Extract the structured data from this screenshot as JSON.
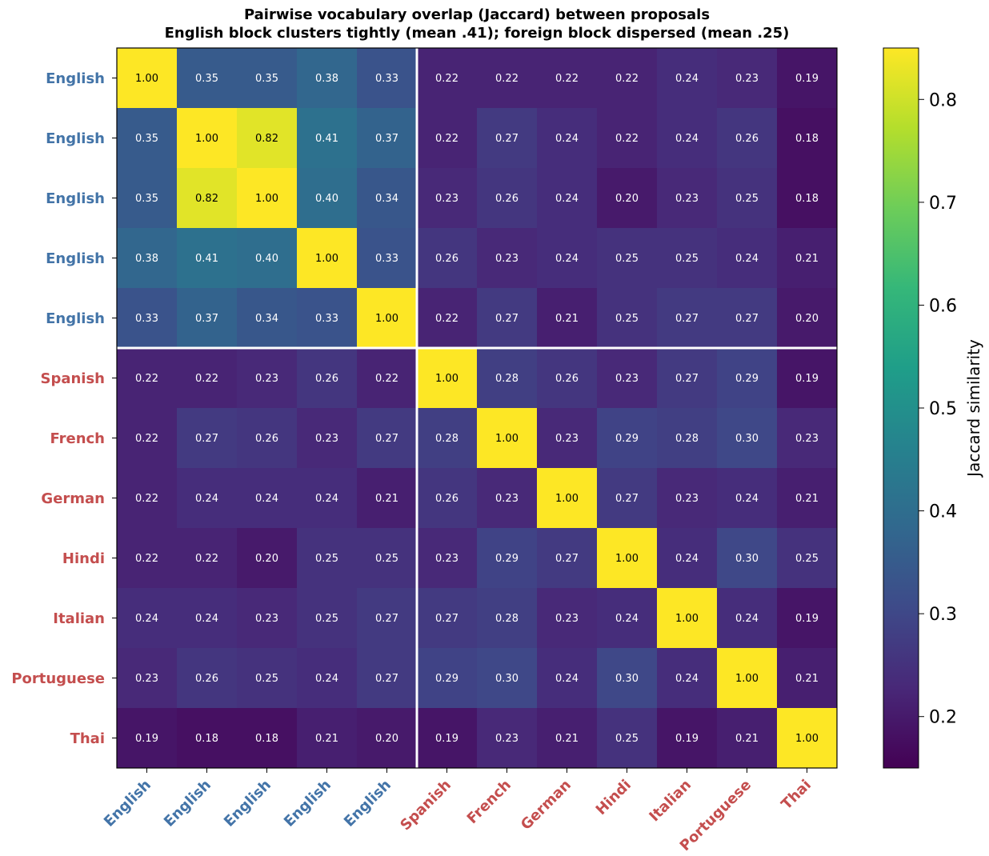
{
  "chart_data": {
    "type": "heatmap",
    "title": "Pairwise vocabulary overlap (Jaccard) between proposals",
    "subtitle": "English block clusters tightly (mean .41); foreign block dispersed (mean .25)",
    "row_labels": [
      "English",
      "English",
      "English",
      "English",
      "English",
      "Spanish",
      "French",
      "German",
      "Hindi",
      "Italian",
      "Portuguese",
      "Thai"
    ],
    "col_labels": [
      "English",
      "English",
      "English",
      "English",
      "English",
      "Spanish",
      "French",
      "German",
      "Hindi",
      "Italian",
      "Portuguese",
      "Thai"
    ],
    "label_groups": [
      "english",
      "english",
      "english",
      "english",
      "english",
      "foreign",
      "foreign",
      "foreign",
      "foreign",
      "foreign",
      "foreign",
      "foreign"
    ],
    "values": [
      [
        1.0,
        0.35,
        0.35,
        0.38,
        0.33,
        0.22,
        0.22,
        0.22,
        0.22,
        0.24,
        0.23,
        0.19
      ],
      [
        0.35,
        1.0,
        0.82,
        0.41,
        0.37,
        0.22,
        0.27,
        0.24,
        0.22,
        0.24,
        0.26,
        0.18
      ],
      [
        0.35,
        0.82,
        1.0,
        0.4,
        0.34,
        0.23,
        0.26,
        0.24,
        0.2,
        0.23,
        0.25,
        0.18
      ],
      [
        0.38,
        0.41,
        0.4,
        1.0,
        0.33,
        0.26,
        0.23,
        0.24,
        0.25,
        0.25,
        0.24,
        0.21
      ],
      [
        0.33,
        0.37,
        0.34,
        0.33,
        1.0,
        0.22,
        0.27,
        0.21,
        0.25,
        0.27,
        0.27,
        0.2
      ],
      [
        0.22,
        0.22,
        0.23,
        0.26,
        0.22,
        1.0,
        0.28,
        0.26,
        0.23,
        0.27,
        0.29,
        0.19
      ],
      [
        0.22,
        0.27,
        0.26,
        0.23,
        0.27,
        0.28,
        1.0,
        0.23,
        0.29,
        0.28,
        0.3,
        0.23
      ],
      [
        0.22,
        0.24,
        0.24,
        0.24,
        0.21,
        0.26,
        0.23,
        1.0,
        0.27,
        0.23,
        0.24,
        0.21
      ],
      [
        0.22,
        0.22,
        0.2,
        0.25,
        0.25,
        0.23,
        0.29,
        0.27,
        1.0,
        0.24,
        0.3,
        0.25
      ],
      [
        0.24,
        0.24,
        0.23,
        0.25,
        0.27,
        0.27,
        0.28,
        0.23,
        0.24,
        1.0,
        0.24,
        0.19
      ],
      [
        0.23,
        0.26,
        0.25,
        0.24,
        0.27,
        0.29,
        0.3,
        0.24,
        0.3,
        0.24,
        1.0,
        0.21
      ],
      [
        0.19,
        0.18,
        0.18,
        0.21,
        0.2,
        0.19,
        0.23,
        0.21,
        0.25,
        0.19,
        0.21,
        1.0
      ]
    ],
    "block_split_after_index": 4,
    "colorbar": {
      "label": "Jaccard similarity",
      "vmin": 0.15,
      "vmax": 0.85,
      "ticks": [
        0.2,
        0.3,
        0.4,
        0.5,
        0.6,
        0.7,
        0.8
      ],
      "tick_labels": [
        "0.2",
        "0.3",
        "0.4",
        "0.5",
        "0.6",
        "0.7",
        "0.8"
      ],
      "colormap": "viridis"
    },
    "colors": {
      "english_label": "#4374a8",
      "foreign_label": "#c44e4e",
      "divider": "#ffffff"
    },
    "grid": false
  }
}
